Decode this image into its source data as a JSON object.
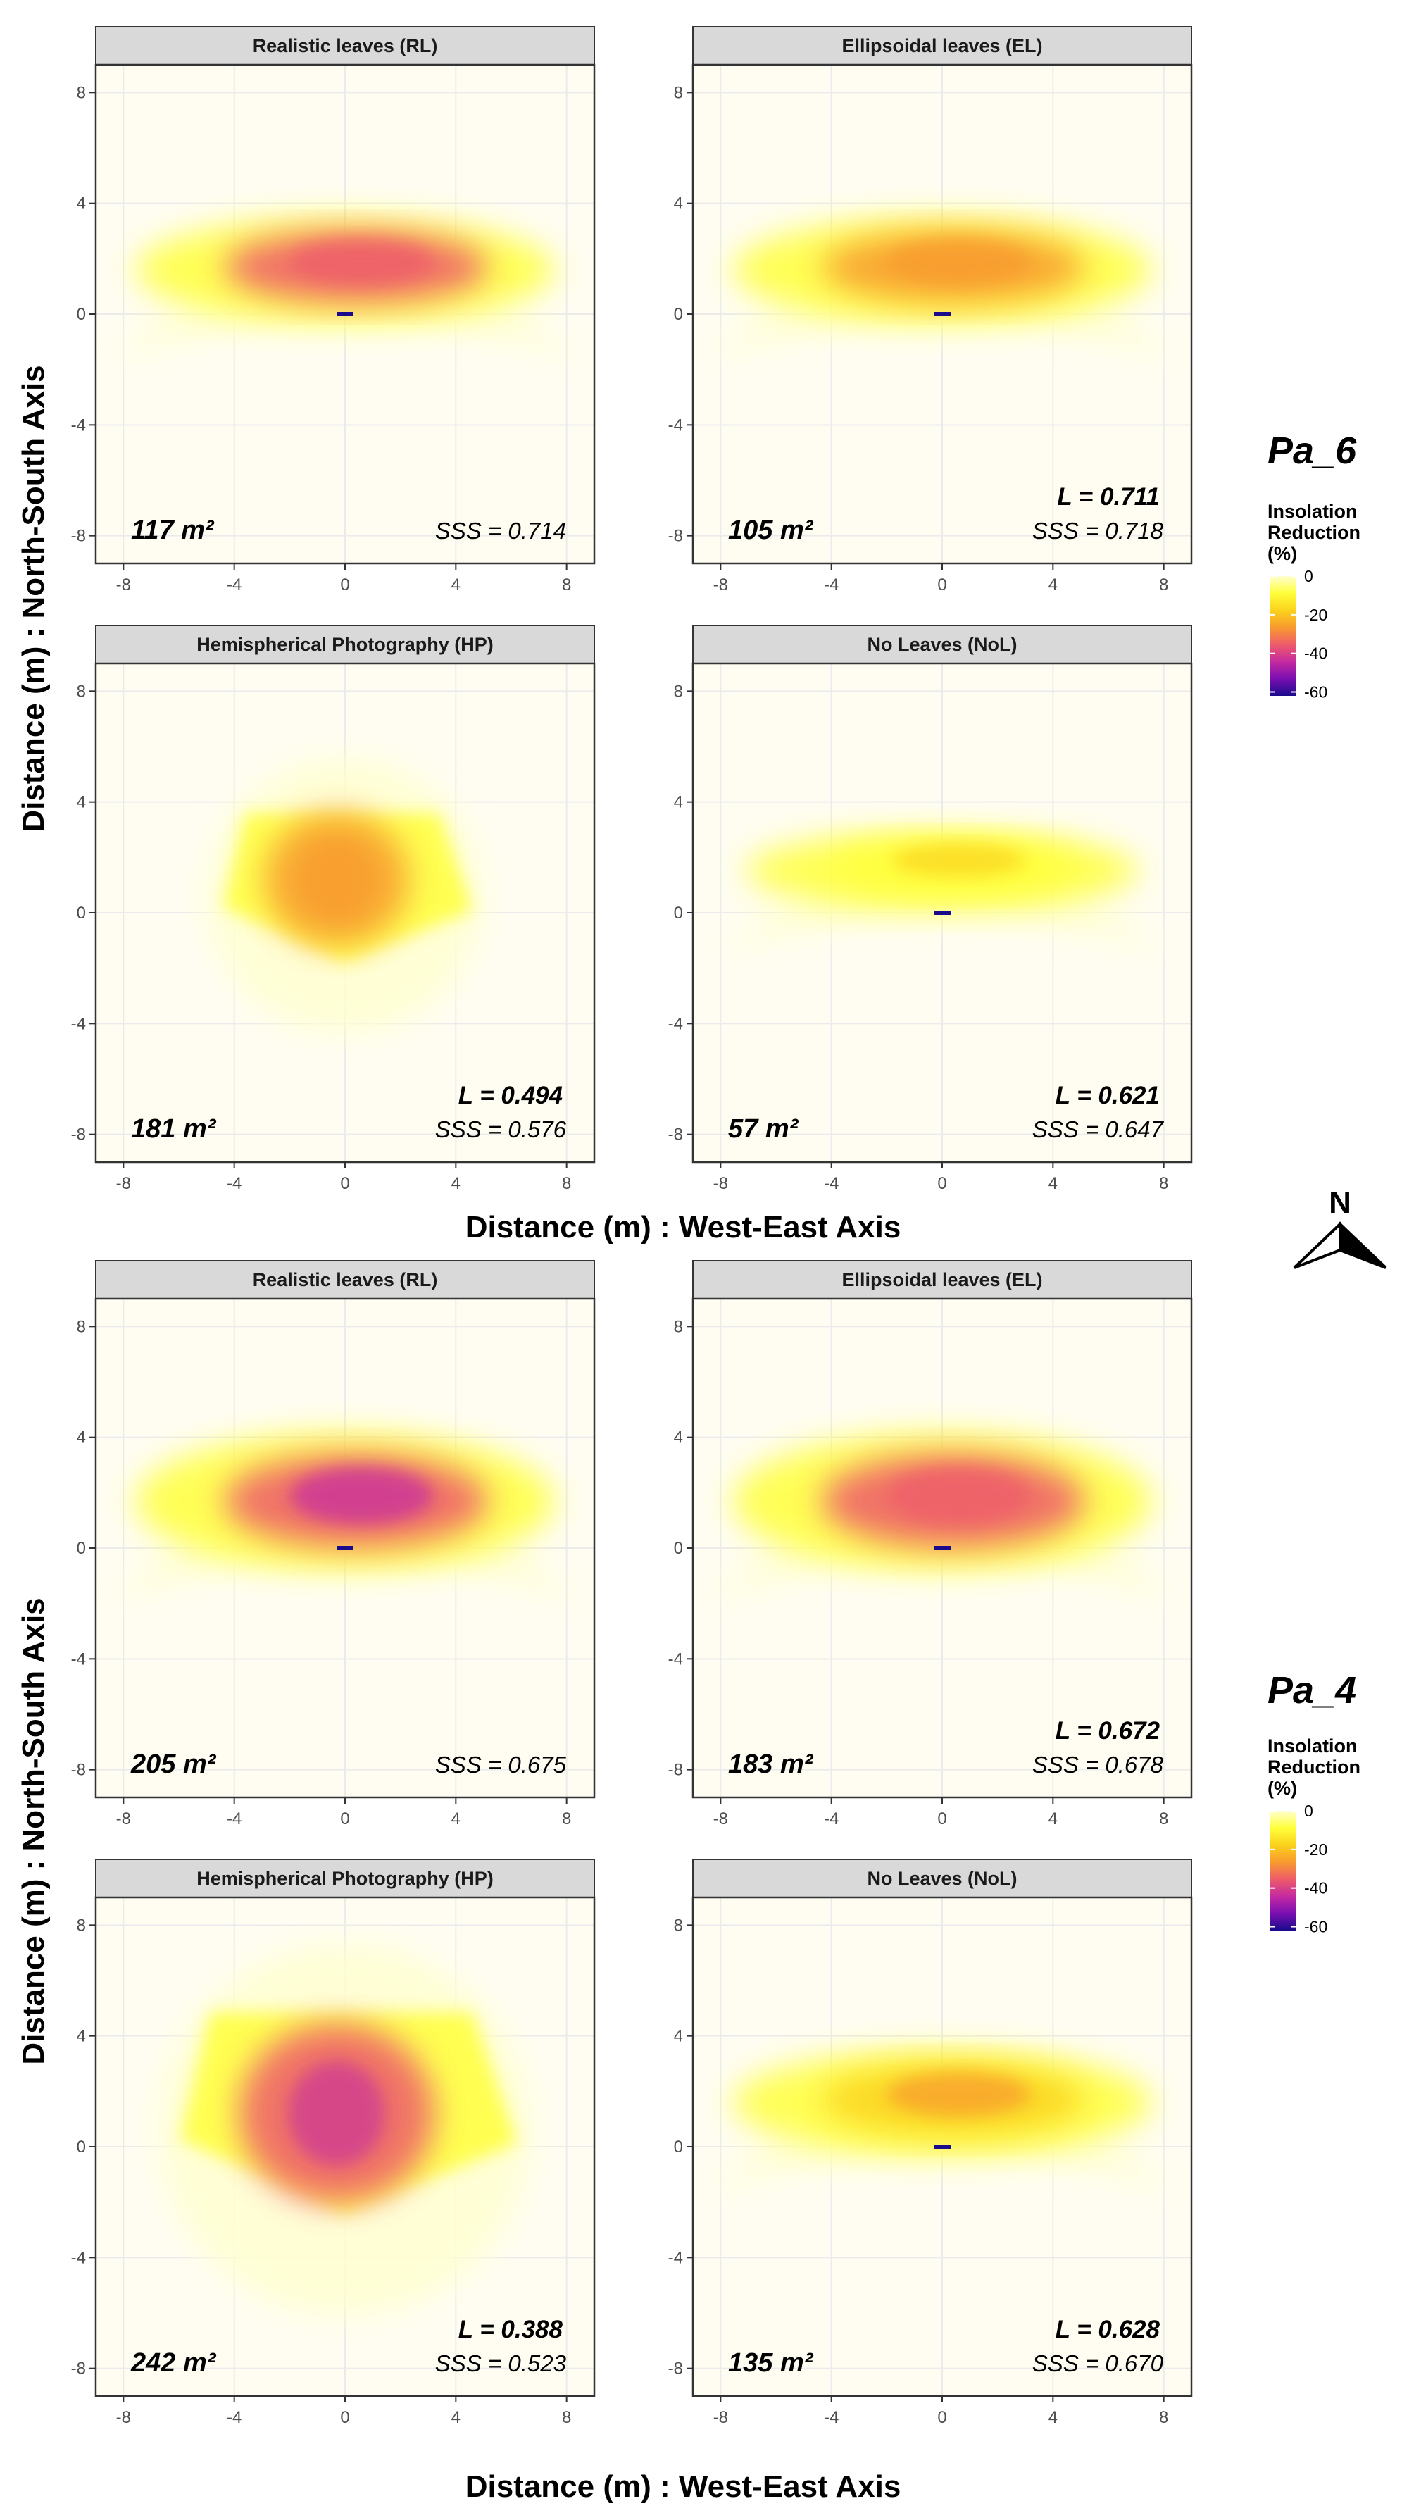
{
  "figure": {
    "axis_x_label": "Distance (m) : West-East Axis",
    "axis_y_label": "Distance (m) : North-South Axis",
    "north_label": "N",
    "colors": {
      "strip_fill": "#d9d9d9",
      "grid": "#ebebeb",
      "panel_bg": "#fffdf2",
      "scale": [
        "#ffffd0",
        "#ffff3a",
        "#fbd21c",
        "#f89a2e",
        "#ee5c6a",
        "#c52aa0",
        "#7a0fb2",
        "#1a0a8c"
      ]
    },
    "legend": {
      "title_lines": [
        "Insolation",
        "Reduction",
        "(%)"
      ],
      "ticks": [
        0,
        -20,
        -40,
        -60
      ],
      "domain": [
        0,
        -62
      ]
    },
    "groups": [
      {
        "species": "Pa_6",
        "panels": [
          {
            "title": "Realistic leaves (RL)",
            "area": "117 m²",
            "L": "",
            "SSS": "SSS = 0.714",
            "shape": "arc",
            "spread": 1.0,
            "intensity": 0.55
          },
          {
            "title": "Ellipsoidal leaves (EL)",
            "area": "105 m²",
            "L": "L = 0.711",
            "SSS": "SSS = 0.718",
            "shape": "arc",
            "spread": 1.0,
            "intensity": 0.42
          },
          {
            "title": "Hemispherical Photography (HP)",
            "area": "181 m²",
            "L": "L = 0.494",
            "SSS": "SSS = 0.576",
            "shape": "poly",
            "spread": 1.0,
            "intensity": 0.45
          },
          {
            "title": "No Leaves (NoL)",
            "area": "57 m²",
            "L": "L = 0.621",
            "SSS": "SSS = 0.647",
            "shape": "arc",
            "spread": 0.75,
            "intensity": 0.22
          }
        ]
      },
      {
        "species": "Pa_4",
        "panels": [
          {
            "title": "Realistic leaves (RL)",
            "area": "205 m²",
            "L": "",
            "SSS": "SSS = 0.675",
            "shape": "arc",
            "spread": 1.3,
            "intensity": 0.62
          },
          {
            "title": "Ellipsoidal leaves (EL)",
            "area": "183 m²",
            "L": "L = 0.672",
            "SSS": "SSS = 0.678",
            "shape": "arc",
            "spread": 1.3,
            "intensity": 0.55
          },
          {
            "title": "Hemispherical Photography (HP)",
            "area": "242 m²",
            "L": "L = 0.388",
            "SSS": "SSS = 0.523",
            "shape": "poly",
            "spread": 1.35,
            "intensity": 0.6
          },
          {
            "title": "No Leaves (NoL)",
            "area": "135 m²",
            "L": "L = 0.628",
            "SSS": "SSS = 0.670",
            "shape": "arc",
            "spread": 1.0,
            "intensity": 0.36
          }
        ]
      }
    ]
  },
  "chart_data": {
    "type": "heatmap",
    "description_units": "Insolation reduction (%) on a grid of distance (m)",
    "xlabel": "Distance (m) : West-East Axis",
    "ylabel": "Distance (m) : North-South Axis",
    "xlim": [
      -9,
      9
    ],
    "ylim": [
      -9,
      9
    ],
    "x_ticks": [
      -8,
      -4,
      0,
      4,
      8
    ],
    "y_ticks": [
      -8,
      -4,
      0,
      4,
      8
    ],
    "color_scale": {
      "label": "Insolation Reduction (%)",
      "range": [
        0,
        -60
      ],
      "ticks": [
        0,
        -20,
        -40,
        -60
      ]
    },
    "panels": [
      {
        "group": "Pa_6",
        "title": "Realistic leaves (RL)",
        "area_m2": 117,
        "SSS": 0.714
      },
      {
        "group": "Pa_6",
        "title": "Ellipsoidal leaves (EL)",
        "area_m2": 105,
        "L": 0.711,
        "SSS": 0.718
      },
      {
        "group": "Pa_6",
        "title": "Hemispherical Photography (HP)",
        "area_m2": 181,
        "L": 0.494,
        "SSS": 0.576
      },
      {
        "group": "Pa_6",
        "title": "No Leaves (NoL)",
        "area_m2": 57,
        "L": 0.621,
        "SSS": 0.647
      },
      {
        "group": "Pa_4",
        "title": "Realistic leaves (RL)",
        "area_m2": 205,
        "SSS": 0.675
      },
      {
        "group": "Pa_4",
        "title": "Ellipsoidal leaves (EL)",
        "area_m2": 183,
        "L": 0.672,
        "SSS": 0.678
      },
      {
        "group": "Pa_4",
        "title": "Hemispherical Photography (HP)",
        "area_m2": 242,
        "L": 0.388,
        "SSS": 0.523
      },
      {
        "group": "Pa_4",
        "title": "No Leaves (NoL)",
        "area_m2": 135,
        "L": 0.628,
        "SSS": 0.67
      }
    ]
  }
}
